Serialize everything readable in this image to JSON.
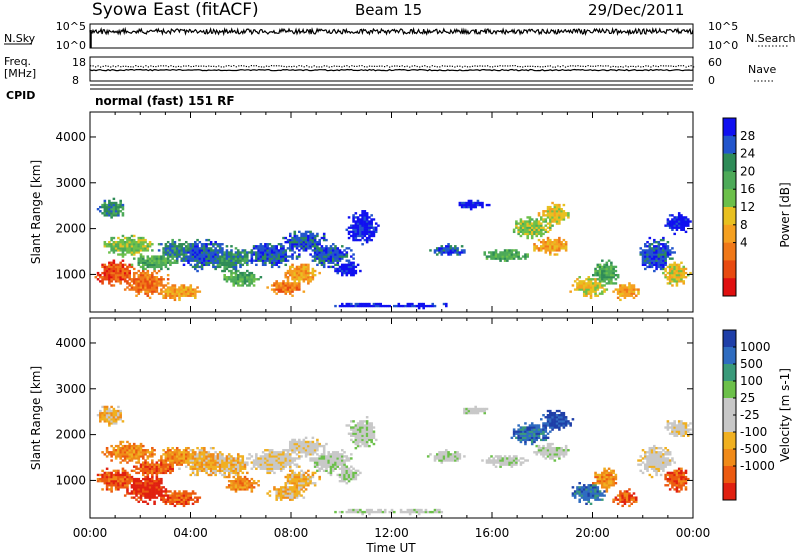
{
  "header": {
    "title": "Syowa East (fitACF)",
    "beam": "Beam 15",
    "date": "29/Dec/2011"
  },
  "top_panels": {
    "nsky_label": "N.Sky",
    "nsky_ticks": [
      "10^5",
      "10^0"
    ],
    "nsearch_label": "N.Search",
    "nsearch_ticks": [
      "10^5",
      "10^0"
    ],
    "freq_label": "Freq.",
    "freq_unit": "[MHz]",
    "freq_ticks": [
      "18",
      "8"
    ],
    "nave_label": "Nave",
    "nave_ticks": [
      "60",
      "0"
    ],
    "cpid_label": "CPID",
    "cpid_text": "normal (fast) 151 RF"
  },
  "chart_data": [
    {
      "type": "heatmap",
      "name": "power",
      "ylabel": "Slant Range [km]",
      "yticks": [
        "4000",
        "3000",
        "2000",
        "1000"
      ],
      "ylim": [
        180,
        4545
      ],
      "xlim": [
        0,
        24
      ],
      "colorbar_label": "Power [dB]",
      "colorbar_ticks": [
        "28",
        "24",
        "20",
        "16",
        "12",
        "8",
        "4"
      ],
      "colors": [
        "#1010f0",
        "#2255cc",
        "#2e8b57",
        "#4daa58",
        "#6cc04a",
        "#e8c020",
        "#f5a020",
        "#f07818",
        "#e84a10",
        "#e01010"
      ]
    },
    {
      "type": "heatmap",
      "name": "velocity",
      "ylabel": "Slant Range [km]",
      "yticks": [
        "4000",
        "3000",
        "2000",
        "1000"
      ],
      "ylim": [
        180,
        4545
      ],
      "xlim": [
        0,
        24
      ],
      "xticks": [
        "00:00",
        "04:00",
        "08:00",
        "12:00",
        "16:00",
        "20:00",
        "00:00"
      ],
      "xlabel": "Time UT",
      "colorbar_label": "Velocity [m s-1]",
      "colorbar_ticks": [
        "1000",
        "500",
        "100",
        "25",
        "-25",
        "-100",
        "-500",
        "-1000"
      ],
      "colors": [
        "#1f3fa8",
        "#2f6cc0",
        "#3a9a7a",
        "#6cc04a",
        "#c8c8c8",
        "#c8c8c8",
        "#f0b020",
        "#f08a18",
        "#ec5a10",
        "#e02010"
      ]
    }
  ]
}
